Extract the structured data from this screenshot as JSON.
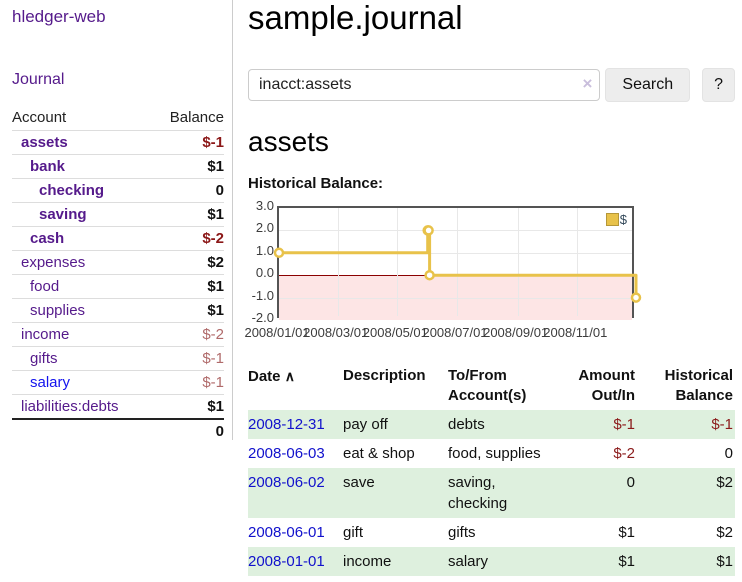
{
  "colors": {
    "accent_purple": "#551a8b",
    "link_blue": "#1414ee",
    "date_link_blue": "#1111cc",
    "negative_dark": "#8b1717",
    "negative_muted": "#b06a6a",
    "row_green": "#def0de",
    "chart_line_gold": "#e8c24a",
    "chart_negative_pink": "#fde5e5",
    "chart_zero_line": "#8b0000"
  },
  "sidebar": {
    "brand": "hledger-web",
    "nav": {
      "journal": "Journal"
    },
    "accounts_table": {
      "headers": {
        "account": "Account",
        "balance": "Balance"
      },
      "rows": [
        {
          "name": "assets",
          "depth": 0,
          "bold": true,
          "balance": "$-1",
          "balance_style": "neg"
        },
        {
          "name": "bank",
          "depth": 1,
          "bold": true,
          "balance": "$1",
          "balance_style": "pos"
        },
        {
          "name": "checking",
          "depth": 2,
          "bold": true,
          "balance": "0",
          "balance_style": "pos"
        },
        {
          "name": "saving",
          "depth": 2,
          "bold": true,
          "balance": "$1",
          "balance_style": "pos"
        },
        {
          "name": "cash",
          "depth": 1,
          "bold": true,
          "balance": "$-2",
          "balance_style": "neg"
        },
        {
          "name": "expenses",
          "depth": 0,
          "bold": false,
          "balance": "$2",
          "balance_style": "pos"
        },
        {
          "name": "food",
          "depth": 1,
          "bold": false,
          "balance": "$1",
          "balance_style": "pos"
        },
        {
          "name": "supplies",
          "depth": 1,
          "bold": false,
          "balance": "$1",
          "balance_style": "pos"
        },
        {
          "name": "income",
          "depth": 0,
          "bold": false,
          "balance": "$-2",
          "balance_style": "neg-light"
        },
        {
          "name": "gifts",
          "depth": 1,
          "bold": false,
          "balance": "$-1",
          "balance_style": "neg-light"
        },
        {
          "name": "salary",
          "depth": 1,
          "bold": false,
          "link_color": "blue",
          "balance": "$-1",
          "balance_style": "neg-light"
        },
        {
          "name": "liabilities:debts",
          "depth": 0,
          "bold": false,
          "balance": "$1",
          "balance_style": "pos"
        }
      ],
      "total": "0"
    }
  },
  "header": {
    "title": "sample.journal"
  },
  "search": {
    "value": "inacct:assets",
    "clear_icon": "×",
    "button": "Search",
    "help_button": "?"
  },
  "account_page": {
    "heading": "assets",
    "chart_title": "Historical Balance:"
  },
  "chart_data": {
    "type": "line",
    "step": true,
    "title": "Historical Balance",
    "series": [
      {
        "name": "$",
        "color": "#e8c24a",
        "points": [
          [
            "2008-01-01",
            1
          ],
          [
            "2008-06-01",
            2
          ],
          [
            "2008-06-02",
            2
          ],
          [
            "2008-06-03",
            0
          ],
          [
            "2008-12-31",
            -1
          ]
        ]
      }
    ],
    "x_range": [
      "2008-01-01",
      "2008-12-31"
    ],
    "ylim": [
      -2,
      3
    ],
    "y_ticks": [
      "3.0",
      "2.0",
      "1.0",
      "0.0",
      "-1.0",
      "-2.0"
    ],
    "x_ticks": [
      "2008/01/01",
      "2008/03/01",
      "2008/05/01",
      "2008/07/01",
      "2008/09/01",
      "2008/11/01"
    ],
    "grid": true,
    "legend": "$",
    "legend_position": "top-right",
    "negative_fill": "#fde5e5",
    "zero_line_color": "#8b0000"
  },
  "register": {
    "headers": {
      "date": "Date",
      "sort_icon": "∧",
      "description": "Description",
      "account": "To/From Account(s)",
      "amount": "Amount Out/In",
      "balance": "Historical Balance"
    },
    "rows": [
      {
        "date": "2008-12-31",
        "description": "pay off",
        "accounts": "debts",
        "amount": "$-1",
        "amount_neg": true,
        "balance": "$-1",
        "balance_neg": true
      },
      {
        "date": "2008-06-03",
        "description": "eat & shop",
        "accounts": "food, supplies",
        "amount": "$-2",
        "amount_neg": true,
        "balance": "0",
        "balance_neg": false
      },
      {
        "date": "2008-06-02",
        "description": "save",
        "accounts": "saving, checking",
        "amount": "0",
        "amount_neg": false,
        "balance": "$2",
        "balance_neg": false
      },
      {
        "date": "2008-06-01",
        "description": "gift",
        "accounts": "gifts",
        "amount": "$1",
        "amount_neg": false,
        "balance": "$2",
        "balance_neg": false
      },
      {
        "date": "2008-01-01",
        "description": "income",
        "accounts": "salary",
        "amount": "$1",
        "amount_neg": false,
        "balance": "$1",
        "balance_neg": false
      }
    ]
  }
}
